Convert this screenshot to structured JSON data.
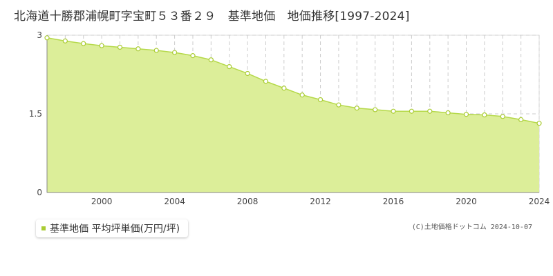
{
  "title": "北海道十勝郡浦幌町字宝町５３番２９　基準地価　地価推移[1997-2024]",
  "legend_label": "基準地価 平均坪単価(万円/坪)",
  "copyright": "(C)土地価格ドットコム 2024-10-07",
  "colors": {
    "area_fill": "#dcee99",
    "line": "#b5d94a",
    "point_stroke": "#aacc33",
    "legend_marker": "#aacc33"
  },
  "chart_data": {
    "type": "area",
    "title": "北海道十勝郡浦幌町字宝町５３番２９　基準地価　地価推移[1997-2024]",
    "xlabel": "",
    "ylabel": "",
    "xlim": [
      1997,
      2024
    ],
    "ylim": [
      0,
      3
    ],
    "x_ticks": [
      2000,
      2004,
      2008,
      2012,
      2016,
      2020,
      2024
    ],
    "y_ticks": [
      0,
      1.5,
      3
    ],
    "y_tick_labels": [
      "0",
      "1.5",
      "3"
    ],
    "grid": true,
    "legend": "bottom-left",
    "series": [
      {
        "name": "基準地価 平均坪単価(万円/坪)",
        "x": [
          1997,
          1998,
          1999,
          2000,
          2001,
          2002,
          2003,
          2004,
          2005,
          2006,
          2007,
          2008,
          2009,
          2010,
          2011,
          2012,
          2013,
          2014,
          2015,
          2016,
          2017,
          2018,
          2019,
          2020,
          2021,
          2022,
          2023,
          2024
        ],
        "values": [
          2.95,
          2.89,
          2.84,
          2.8,
          2.77,
          2.74,
          2.71,
          2.67,
          2.61,
          2.53,
          2.4,
          2.27,
          2.12,
          1.99,
          1.86,
          1.77,
          1.67,
          1.61,
          1.58,
          1.55,
          1.55,
          1.55,
          1.52,
          1.49,
          1.48,
          1.45,
          1.39,
          1.32
        ]
      }
    ]
  }
}
